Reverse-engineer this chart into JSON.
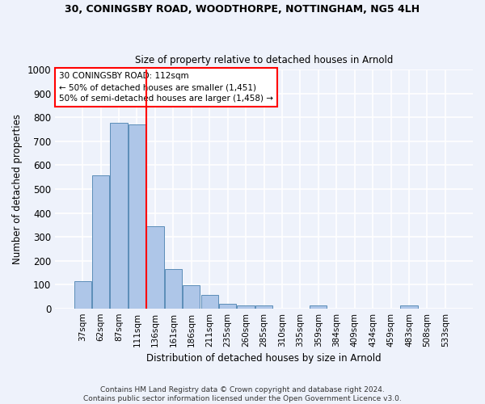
{
  "title_line1": "30, CONINGSBY ROAD, WOODTHORPE, NOTTINGHAM, NG5 4LH",
  "title_line2": "Size of property relative to detached houses in Arnold",
  "xlabel": "Distribution of detached houses by size in Arnold",
  "ylabel": "Number of detached properties",
  "categories": [
    "37sqm",
    "62sqm",
    "87sqm",
    "111sqm",
    "136sqm",
    "161sqm",
    "186sqm",
    "211sqm",
    "235sqm",
    "260sqm",
    "285sqm",
    "310sqm",
    "335sqm",
    "359sqm",
    "384sqm",
    "409sqm",
    "434sqm",
    "459sqm",
    "483sqm",
    "508sqm",
    "533sqm"
  ],
  "values": [
    113,
    557,
    778,
    770,
    343,
    165,
    98,
    55,
    20,
    14,
    14,
    0,
    0,
    12,
    0,
    0,
    0,
    0,
    11,
    0,
    0
  ],
  "bar_color": "#aec6e8",
  "bar_edge_color": "#5b8db8",
  "red_line_index": 3.5,
  "red_line_label": "30 CONINGSBY ROAD: 112sqm",
  "annotation_line2": "← 50% of detached houses are smaller (1,451)",
  "annotation_line3": "50% of semi-detached houses are larger (1,458) →",
  "ylim": [
    0,
    1000
  ],
  "yticks": [
    0,
    100,
    200,
    300,
    400,
    500,
    600,
    700,
    800,
    900,
    1000
  ],
  "footer_line1": "Contains HM Land Registry data © Crown copyright and database right 2024.",
  "footer_line2": "Contains public sector information licensed under the Open Government Licence v3.0.",
  "background_color": "#eef2fb",
  "grid_color": "#ffffff"
}
